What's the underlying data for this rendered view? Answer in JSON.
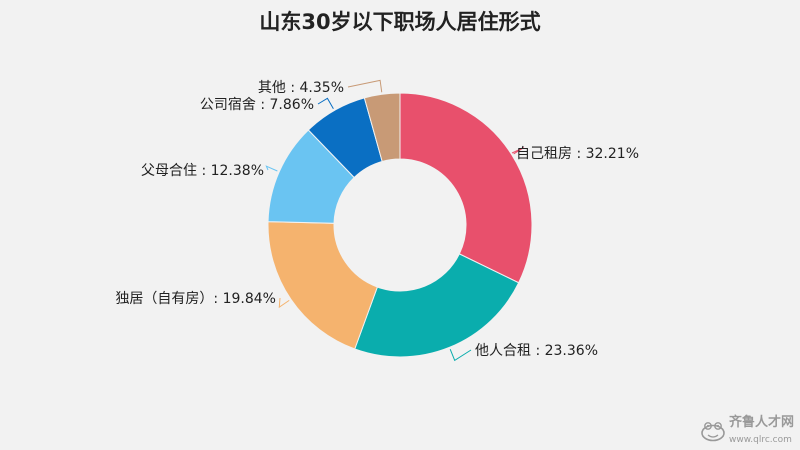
{
  "chart_data": {
    "type": "pie",
    "variant": "donut",
    "title": "山东30岁以下职场人居住形式",
    "categories": [
      "自己租房",
      "他人合租",
      "独居（自有房）",
      "父母合住",
      "公司宿舍",
      "其他"
    ],
    "values": [
      32.21,
      23.36,
      19.84,
      12.38,
      7.86,
      4.35
    ],
    "labels": [
      "自己租房 : 32.21%",
      "他人合租 : 23.36%",
      "独居（自有房）: 19.84%",
      "父母合住 : 12.38%",
      "公司宿舍 : 7.86%",
      "其他 : 4.35%"
    ],
    "colors": [
      "#e8506c",
      "#0aadad",
      "#f5b36e",
      "#6ac4f2",
      "#0a6fc3",
      "#c89a76"
    ],
    "legend": "none"
  },
  "watermark": {
    "text": "齐鲁人才网",
    "url": "www.qlrc.com",
    "icon": "frog-logo-icon"
  }
}
